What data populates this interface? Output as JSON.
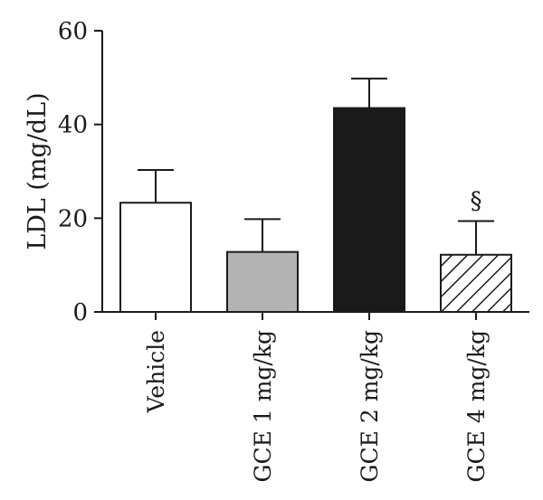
{
  "chart_data": {
    "type": "bar",
    "ylabel": "LDL (mg/dL)",
    "xlabel": "",
    "title": "",
    "ylim": [
      0,
      60
    ],
    "yticks": [
      "0",
      "20",
      "40",
      "60"
    ],
    "grid": false,
    "categories": [
      "Vehicle",
      "GCE 1 mg/kg",
      "GCE 2 mg/kg",
      "GCE 4 mg/kg"
    ],
    "values": [
      23.3,
      12.8,
      43.5,
      12.2
    ],
    "errors": [
      7.0,
      7.0,
      6.3,
      7.2
    ],
    "annotations": [
      "",
      "",
      "",
      "§"
    ],
    "bar_styles": [
      {
        "fill": "#ffffff",
        "pattern": "none"
      },
      {
        "fill": "#b3b3b3",
        "pattern": "none"
      },
      {
        "fill": "#1a1a1a",
        "pattern": "none"
      },
      {
        "fill": "#ffffff",
        "pattern": "diagonal-hatch"
      }
    ]
  }
}
